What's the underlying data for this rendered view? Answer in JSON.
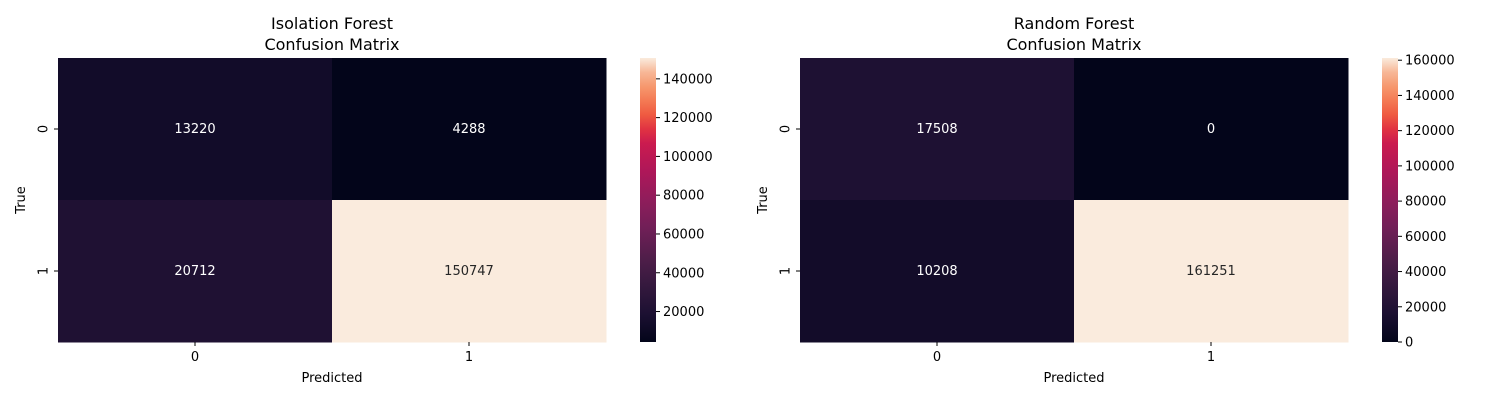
{
  "chart_data": [
    {
      "type": "heatmap",
      "title": [
        "Isolation Forest",
        "Confusion Matrix"
      ],
      "xlabel": "Predicted",
      "ylabel": "True",
      "x_categories": [
        "0",
        "1"
      ],
      "y_categories": [
        "0",
        "1"
      ],
      "values": [
        [
          13220,
          4288
        ],
        [
          20712,
          150747
        ]
      ],
      "colorbar": {
        "min": 4288,
        "max": 150747,
        "ticks": [
          20000,
          40000,
          60000,
          80000,
          100000,
          120000,
          140000
        ],
        "tick_labels": [
          "20000",
          "40000",
          "60000",
          "80000",
          "100000",
          "120000",
          "140000"
        ]
      },
      "colormap": "rocket"
    },
    {
      "type": "heatmap",
      "title": [
        "Random Forest",
        "Confusion Matrix"
      ],
      "xlabel": "Predicted",
      "ylabel": "True",
      "x_categories": [
        "0",
        "1"
      ],
      "y_categories": [
        "0",
        "1"
      ],
      "values": [
        [
          17508,
          0
        ],
        [
          10208,
          161251
        ]
      ],
      "colorbar": {
        "min": 0,
        "max": 161251,
        "ticks": [
          0,
          20000,
          40000,
          60000,
          80000,
          100000,
          120000,
          140000,
          160000
        ],
        "tick_labels": [
          "0",
          "20000",
          "40000",
          "60000",
          "80000",
          "100000",
          "120000",
          "140000",
          "160000"
        ]
      },
      "colormap": "rocket"
    }
  ]
}
